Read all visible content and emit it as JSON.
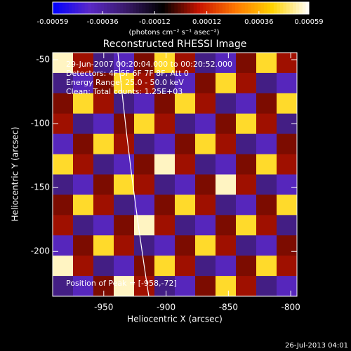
{
  "chart_data": {
    "type": "image",
    "title": "Reconstructed RHESSI Image",
    "xlabel": "Heliocentric X (arcsec)",
    "ylabel": "Heliocentric Y (arcsec)",
    "annotations": [
      "29-Jun-2007 00:20:04.000 to 00:20:52.000",
      "Detectors: 4F 5F 6F 7F 8F, Att 0",
      "Energy Range: 25.0 - 50.0 keV",
      "Clean: Total counts: 1.25E+03"
    ],
    "peak_label": "Position of Peak = [-958,-72]",
    "footer": "26-Jul-2013 04:01",
    "colorbar_label": "(photons cm⁻² s⁻¹ asec⁻²)",
    "clim": [
      -0.00059,
      0.00059
    ],
    "cticks": [
      -0.00059,
      -0.00036,
      -0.00012,
      0.00012,
      0.00036,
      0.00059
    ],
    "colorscale": [
      "#0000ff",
      "#5a28c8",
      "#3a1a6a",
      "#000000",
      "#c81400",
      "#ff7800",
      "#ffd200",
      "#ffffff"
    ],
    "xlim": [
      -991,
      -795
    ],
    "ylim": [
      -235,
      -44.5
    ],
    "xticks": [
      -950,
      -900,
      -850,
      -800
    ],
    "yticks": [
      -50,
      -100,
      -150,
      -200
    ],
    "z": [
      [
        0.00055,
        5e-05,
        -0.0003,
        -0.0004,
        2e-05,
        0.00045,
        5e-05,
        -0.0003,
        -0.0004,
        2e-05,
        0.00045,
        5e-05
      ],
      [
        -0.0003,
        -0.0004,
        2e-05,
        0.00045,
        5e-05,
        -0.0003,
        -0.0004,
        2e-05,
        0.00045,
        5e-05,
        -0.0003,
        -0.0004
      ],
      [
        2e-05,
        0.00045,
        5e-05,
        -0.0003,
        -0.0004,
        2e-05,
        0.00045,
        5e-05,
        -0.0003,
        -0.0004,
        2e-05,
        0.00045
      ],
      [
        5e-05,
        -0.0003,
        -0.0004,
        2e-05,
        0.00045,
        5e-05,
        -0.0003,
        -0.0004,
        2e-05,
        0.00045,
        5e-05,
        -0.0003
      ],
      [
        -0.0004,
        2e-05,
        0.00045,
        5e-05,
        -0.0003,
        -0.0004,
        2e-05,
        0.00045,
        5e-05,
        -0.0003,
        -0.0004,
        2e-05
      ],
      [
        0.00045,
        5e-05,
        -0.0003,
        -0.0004,
        2e-05,
        0.00055,
        5e-05,
        -0.0003,
        -0.0004,
        2e-05,
        0.00045,
        5e-05
      ],
      [
        -0.0003,
        -0.0004,
        2e-05,
        0.00045,
        5e-05,
        -0.0003,
        -0.0004,
        2e-05,
        0.00055,
        5e-05,
        -0.0003,
        -0.0004
      ],
      [
        2e-05,
        0.00045,
        5e-05,
        -0.0003,
        -0.0004,
        2e-05,
        0.00045,
        5e-05,
        -0.0003,
        -0.0004,
        2e-05,
        0.00045
      ],
      [
        5e-05,
        -0.0003,
        -0.0004,
        2e-05,
        0.00055,
        5e-05,
        -0.0003,
        -0.0004,
        2e-05,
        0.00045,
        5e-05,
        -0.0003
      ],
      [
        -0.0004,
        2e-05,
        0.00045,
        5e-05,
        -0.0003,
        -0.0004,
        2e-05,
        0.00045,
        5e-05,
        -0.0003,
        -0.0004,
        2e-05
      ],
      [
        0.00055,
        5e-05,
        -0.0003,
        -0.0004,
        2e-05,
        0.00045,
        5e-05,
        -0.0003,
        -0.0004,
        2e-05,
        0.00045,
        5e-05
      ],
      [
        -0.0003,
        -0.0004,
        2e-05,
        0.00055,
        5e-05,
        -0.0003,
        -0.0004,
        2e-05,
        0.00045,
        5e-05,
        -0.0003,
        -0.0004
      ]
    ]
  }
}
